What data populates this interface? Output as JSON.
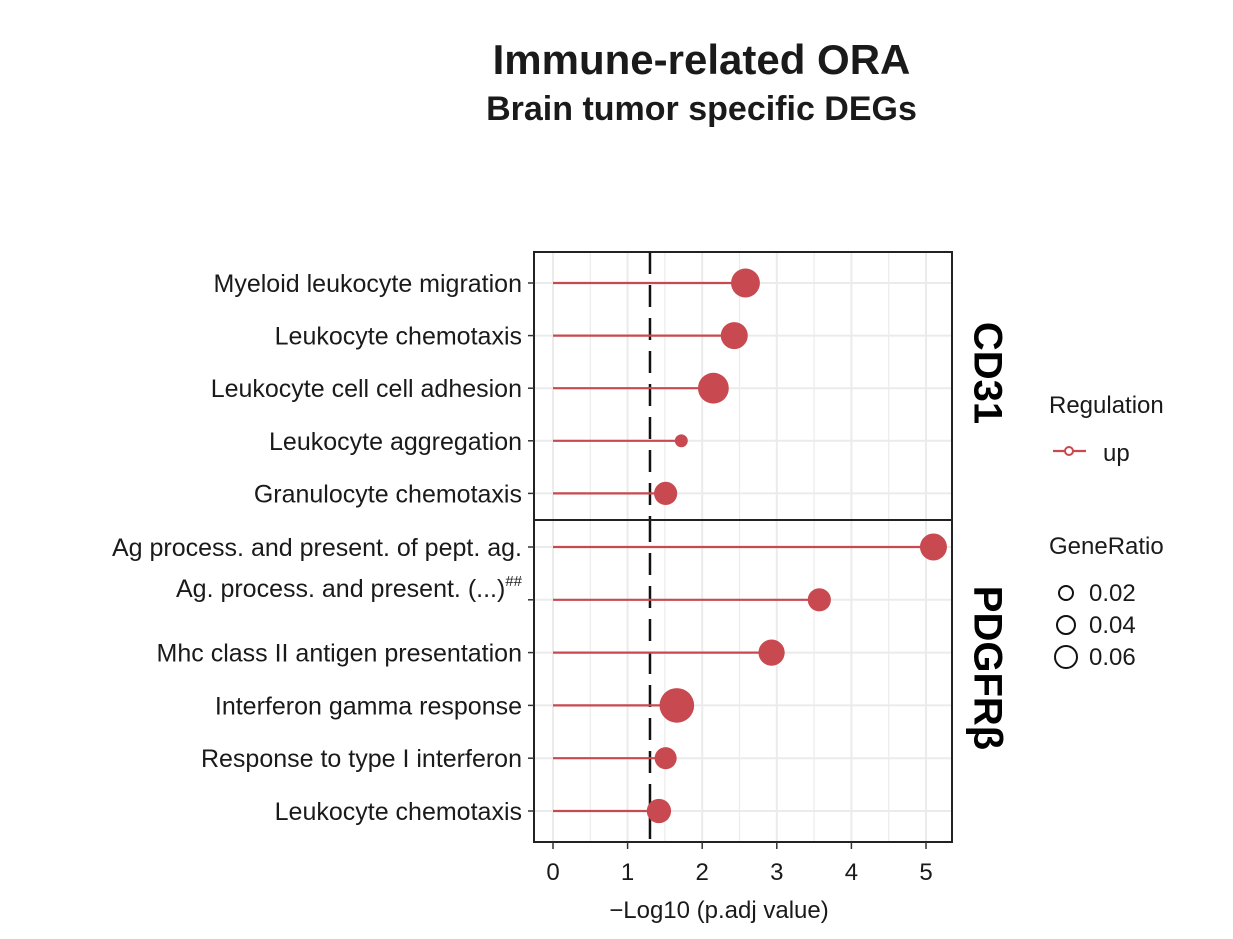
{
  "chart_data": {
    "type": "lollipop",
    "title": "Immune-related ORA",
    "subtitle": "Brain tumor specific DEGs",
    "xlabel": "−Log10 (p.adj value)",
    "xlim": [
      -0.3,
      5.35
    ],
    "xticks": [
      0,
      1,
      2,
      3,
      4,
      5
    ],
    "threshold": 1.3,
    "grid": true,
    "color": "#c8494f",
    "facets": [
      {
        "name": "CD31",
        "categories": [
          "Myeloid leukocyte migration",
          "Leukocyte chemotaxis",
          "Leukocyte cell cell adhesion",
          "Leukocyte aggregation",
          "Granulocyte chemotaxis"
        ],
        "values": [
          2.58,
          2.43,
          2.15,
          1.72,
          1.51
        ],
        "gene_ratio": [
          0.055,
          0.05,
          0.06,
          0.013,
          0.04
        ],
        "category_sup": [
          "",
          "",
          "",
          "",
          ""
        ]
      },
      {
        "name": "PDGFRβ",
        "categories": [
          "Ag process. and present. of pept. ag.",
          "Ag. process. and present. (...)",
          "Mhc class II antigen presentation",
          "Interferon gamma response",
          "Response to type I interferon",
          "Leukocyte chemotaxis"
        ],
        "values": [
          5.1,
          3.57,
          2.93,
          1.66,
          1.51,
          1.42
        ],
        "gene_ratio": [
          0.05,
          0.04,
          0.048,
          0.07,
          0.037,
          0.043
        ],
        "category_sup": [
          "",
          "##",
          "",
          "",
          "",
          ""
        ]
      }
    ],
    "legend": {
      "regulation_title": "Regulation",
      "regulation_items": [
        "up"
      ],
      "size_title": "GeneRatio",
      "size_items": [
        "0.02",
        "0.04",
        "0.06"
      ],
      "placement": "right"
    }
  }
}
